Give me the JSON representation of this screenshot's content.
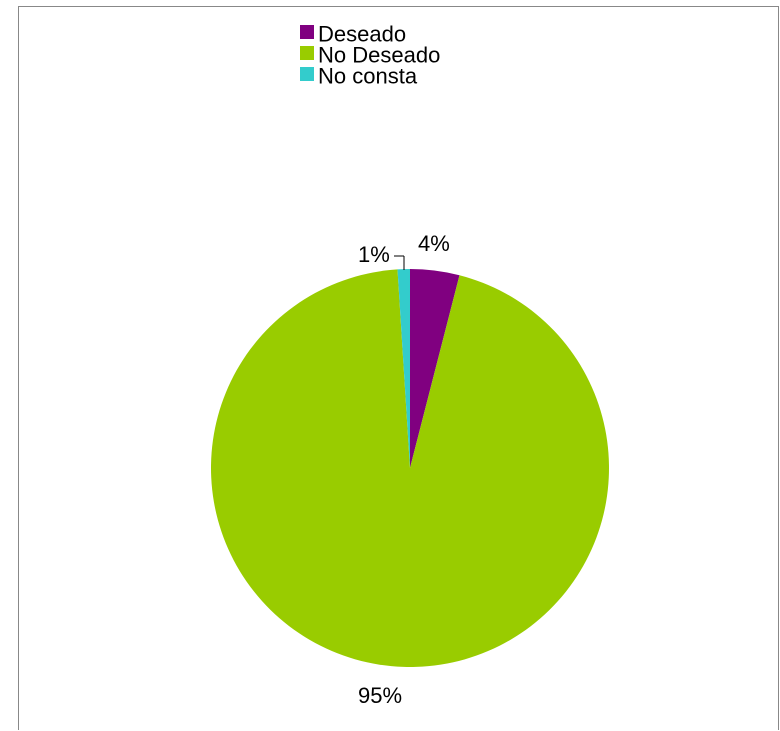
{
  "chart_data": {
    "type": "pie",
    "categories": [
      "Deseado",
      "No Deseado",
      "No consta"
    ],
    "values": [
      4,
      95,
      1
    ],
    "data_labels": [
      "4%",
      "95%",
      "1%"
    ],
    "colors": [
      "#800080",
      "#99CC00",
      "#33CCCC"
    ],
    "title": "",
    "legend_position": "top"
  }
}
